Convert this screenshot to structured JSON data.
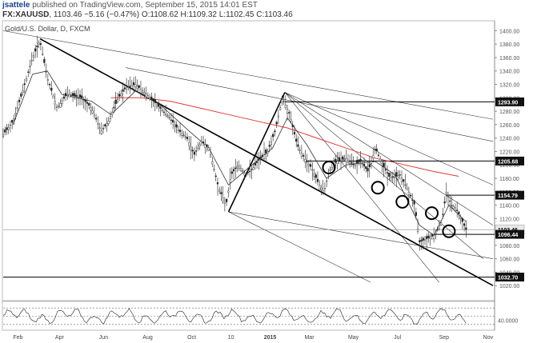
{
  "header": {
    "author": "jsattele",
    "published": "published on TradingView.com, September 15, 2015 14:01 EST",
    "symbol": "FX:XAUUSD",
    "last": "1103.46",
    "change": "−5.16 (−0.47%)",
    "ohlc": "O:1108.62 H:1109.32 L:1102.45 C:1103.46"
  },
  "chart_data": {
    "type": "candlestick",
    "title": "Gold/U.S. Dollar, D, FXCM",
    "y_axis": {
      "range": [
        1000,
        1410
      ],
      "ticks": [
        1400,
        1380,
        1360,
        1340,
        1320,
        1300,
        1280,
        1260,
        1240,
        1220,
        1200,
        1180,
        1160,
        1140,
        1120,
        1100,
        1080,
        1060,
        1040,
        1020
      ]
    },
    "x_axis": {
      "labels": [
        "Feb",
        "Apr",
        "Jun",
        "Aug",
        "Oct",
        "10",
        "2015",
        "Mar",
        "May",
        "Jul",
        "Sep",
        "Nov"
      ],
      "label_positions": [
        0.03,
        0.115,
        0.205,
        0.295,
        0.385,
        0.465,
        0.545,
        0.625,
        0.715,
        0.805,
        0.9,
        0.99
      ]
    },
    "price_path": [
      [
        0.0,
        1245
      ],
      [
        0.02,
        1265
      ],
      [
        0.04,
        1310
      ],
      [
        0.06,
        1360
      ],
      [
        0.075,
        1385
      ],
      [
        0.09,
        1330
      ],
      [
        0.11,
        1285
      ],
      [
        0.13,
        1305
      ],
      [
        0.16,
        1300
      ],
      [
        0.18,
        1285
      ],
      [
        0.2,
        1250
      ],
      [
        0.215,
        1265
      ],
      [
        0.235,
        1300
      ],
      [
        0.25,
        1315
      ],
      [
        0.27,
        1320
      ],
      [
        0.285,
        1310
      ],
      [
        0.3,
        1300
      ],
      [
        0.32,
        1285
      ],
      [
        0.34,
        1270
      ],
      [
        0.36,
        1250
      ],
      [
        0.375,
        1240
      ],
      [
        0.39,
        1215
      ],
      [
        0.405,
        1235
      ],
      [
        0.42,
        1225
      ],
      [
        0.43,
        1195
      ],
      [
        0.44,
        1165
      ],
      [
        0.455,
        1140
      ],
      [
        0.465,
        1185
      ],
      [
        0.48,
        1200
      ],
      [
        0.495,
        1185
      ],
      [
        0.51,
        1195
      ],
      [
        0.525,
        1210
      ],
      [
        0.54,
        1220
      ],
      [
        0.555,
        1250
      ],
      [
        0.57,
        1300
      ],
      [
        0.585,
        1275
      ],
      [
        0.6,
        1230
      ],
      [
        0.615,
        1210
      ],
      [
        0.63,
        1195
      ],
      [
        0.645,
        1170
      ],
      [
        0.655,
        1160
      ],
      [
        0.665,
        1190
      ],
      [
        0.68,
        1205
      ],
      [
        0.7,
        1210
      ],
      [
        0.715,
        1200
      ],
      [
        0.73,
        1205
      ],
      [
        0.745,
        1190
      ],
      [
        0.76,
        1225
      ],
      [
        0.775,
        1200
      ],
      [
        0.79,
        1180
      ],
      [
        0.81,
        1185
      ],
      [
        0.825,
        1165
      ],
      [
        0.84,
        1140
      ],
      [
        0.85,
        1085
      ],
      [
        0.865,
        1090
      ],
      [
        0.88,
        1095
      ],
      [
        0.895,
        1115
      ],
      [
        0.905,
        1160
      ],
      [
        0.915,
        1140
      ],
      [
        0.925,
        1135
      ],
      [
        0.935,
        1120
      ],
      [
        0.945,
        1103.46
      ]
    ],
    "moving_average": [
      [
        0.22,
        1300
      ],
      [
        0.28,
        1300
      ],
      [
        0.34,
        1295
      ],
      [
        0.4,
        1285
      ],
      [
        0.46,
        1275
      ],
      [
        0.52,
        1265
      ],
      [
        0.58,
        1255
      ],
      [
        0.64,
        1240
      ],
      [
        0.7,
        1225
      ],
      [
        0.76,
        1210
      ],
      [
        0.82,
        1200
      ],
      [
        0.88,
        1190
      ],
      [
        0.93,
        1183
      ]
    ],
    "fast_average": [
      [
        0.02,
        1260
      ],
      [
        0.06,
        1335
      ],
      [
        0.09,
        1340
      ],
      [
        0.12,
        1305
      ],
      [
        0.18,
        1295
      ],
      [
        0.22,
        1275
      ],
      [
        0.27,
        1310
      ],
      [
        0.32,
        1290
      ],
      [
        0.38,
        1250
      ],
      [
        0.42,
        1225
      ],
      [
        0.46,
        1170
      ],
      [
        0.5,
        1195
      ],
      [
        0.55,
        1225
      ],
      [
        0.58,
        1270
      ],
      [
        0.62,
        1230
      ],
      [
        0.66,
        1180
      ],
      [
        0.7,
        1200
      ],
      [
        0.76,
        1205
      ],
      [
        0.8,
        1185
      ],
      [
        0.85,
        1110
      ],
      [
        0.88,
        1095
      ],
      [
        0.91,
        1140
      ],
      [
        0.945,
        1115
      ]
    ],
    "horizontal_levels": [
      {
        "value": 1293.9,
        "label": "1293.90",
        "from": 0.575
      },
      {
        "value": 1205.68,
        "label": "1205.68",
        "from": 0.615
      },
      {
        "value": 1154.79,
        "label": "1154.79",
        "from": 0.905
      },
      {
        "value": 1103.46,
        "label": "1103.46",
        "from": 0.0,
        "style": "last"
      },
      {
        "value": 1096.44,
        "label": "1096.44",
        "from": 0.88
      },
      {
        "value": 1032.7,
        "label": "1032.70",
        "from": 0.0
      }
    ],
    "trend_lines": [
      {
        "p1": [
          0.075,
          1388
        ],
        "p2": [
          1.0,
          1020
        ],
        "weight": "thick"
      },
      {
        "p1": [
          0.46,
          1130
        ],
        "p2": [
          0.575,
          1308
        ],
        "weight": "thick"
      },
      {
        "p1": [
          0.0,
          1400
        ],
        "p2": [
          1.0,
          1268
        ],
        "weight": "thin"
      },
      {
        "p1": [
          0.25,
          1345
        ],
        "p2": [
          1.0,
          1235
        ],
        "weight": "thin"
      },
      {
        "p1": [
          0.575,
          1308
        ],
        "p2": [
          1.0,
          1170
        ],
        "weight": "thin"
      },
      {
        "p1": [
          0.575,
          1308
        ],
        "p2": [
          1.0,
          1110
        ],
        "weight": "thin"
      },
      {
        "p1": [
          0.46,
          1130
        ],
        "p2": [
          1.0,
          1060
        ],
        "weight": "thin"
      },
      {
        "p1": [
          0.46,
          1130
        ],
        "p2": [
          0.75,
          1025
        ],
        "weight": "thin"
      },
      {
        "p1": [
          0.575,
          1308
        ],
        "p2": [
          0.89,
          1025
        ],
        "weight": "thin"
      },
      {
        "p1": [
          0.575,
          1308
        ],
        "p2": [
          0.98,
          1060
        ],
        "weight": "thin"
      }
    ],
    "circles": [
      {
        "x": 0.665,
        "y": 1196
      },
      {
        "x": 0.765,
        "y": 1166
      },
      {
        "x": 0.815,
        "y": 1145
      },
      {
        "x": 0.875,
        "y": 1128
      },
      {
        "x": 0.91,
        "y": 1101
      }
    ],
    "indicator": {
      "label": "40.0000",
      "level": 40,
      "range": [
        20,
        80
      ],
      "guides": [
        30,
        50,
        70
      ]
    },
    "colors": {
      "price": "#222222",
      "slow_ma": "#e03a3a",
      "fast_ma": "#333333",
      "trend": "#000000",
      "level_label_bg": "#111111",
      "level_label_text": "#ffffff",
      "last_label_bg": "#e9e9e9"
    }
  }
}
